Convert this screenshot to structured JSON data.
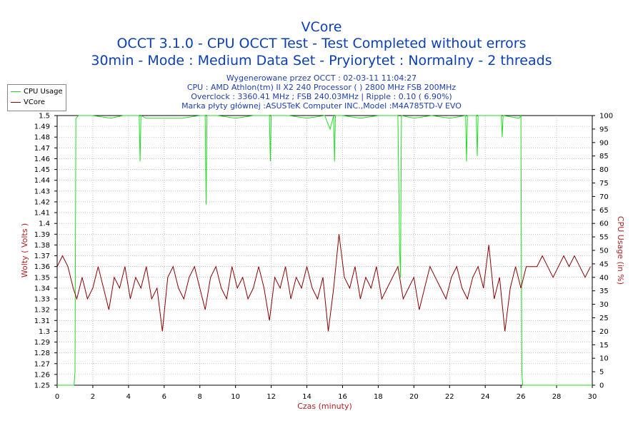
{
  "header": {
    "title": "VCore",
    "line1": "OCCT 3.1.0 - CPU OCCT Test - Test Completed without errors",
    "line2": "30min - Mode : Medium Data Set - Pryiorytet : Normalny - 2 threads",
    "info": [
      "Wygenerowane przez OCCT : 02-03-11 11:04:27",
      "CPU : AMD Athlon(tm) II X2 240 Processor (  ) 2800 MHz FSB 200MHz",
      "Overclock : 3360.41 MHz ; FSB 240.03MHz | Ripple : 0.10 ( 6.90%)",
      "Marka płyty głównej :ASUSTeK Computer INC.,Model :M4A785TD-V EVO"
    ]
  },
  "legend": [
    {
      "name": "CPU Usage",
      "color": "#22dd22"
    },
    {
      "name": "VCore",
      "color": "#8b0000"
    }
  ],
  "chart_data": {
    "type": "line",
    "xlabel": "Czas (minuty)",
    "ylabel": "Wolty ( Volts )",
    "y2label": "CPU Usage (in %)",
    "xlim": [
      0,
      30
    ],
    "ylim": [
      1.25,
      1.5
    ],
    "y2lim": [
      0,
      100
    ],
    "x_ticks": [
      "0",
      "2",
      "4",
      "6",
      "8",
      "10",
      "12",
      "14",
      "16",
      "18",
      "20",
      "22",
      "24",
      "26",
      "28",
      "30"
    ],
    "y_ticks": [
      "1.5",
      "1.49",
      "1.48",
      "1.47",
      "1.46",
      "1.45",
      "1.44",
      "1.43",
      "1.42",
      "1.41",
      "1.4",
      "1.39",
      "1.38",
      "1.37",
      "1.36",
      "1.35",
      "1.34",
      "1.33",
      "1.32",
      "1.31",
      "1.3",
      "1.29",
      "1.28",
      "1.27",
      "1.26",
      "1.25"
    ],
    "y2_ticks": [
      "100",
      "95",
      "90",
      "85",
      "80",
      "75",
      "70",
      "65",
      "60",
      "55",
      "50",
      "45",
      "40",
      "35",
      "30",
      "25",
      "20",
      "15",
      "10",
      "5",
      "0"
    ],
    "grid": true,
    "legend_position": "top-left",
    "series": [
      {
        "name": "CPU Usage",
        "axis": "right",
        "color": "#22dd22",
        "x": [
          0,
          0.95,
          1.0,
          1.05,
          1.2,
          2.0,
          3.0,
          3.7,
          4.0,
          4.6,
          4.65,
          4.7,
          5.0,
          6.0,
          7.0,
          8.0,
          8.3,
          8.35,
          8.4,
          8.5,
          9.0,
          10.0,
          11.0,
          11.9,
          11.95,
          12.0,
          13.0,
          14.0,
          15.0,
          15.3,
          15.5,
          15.55,
          15.6,
          16.0,
          17.0,
          18.0,
          19.1,
          19.2,
          19.25,
          19.3,
          20.0,
          21.0,
          22.0,
          22.9,
          22.95,
          23.0,
          23.5,
          23.55,
          23.6,
          24.0,
          24.9,
          24.95,
          25.0,
          25.9,
          26.0,
          26.05,
          26.1,
          30.0
        ],
        "y": [
          0,
          0,
          5,
          99,
          100,
          100,
          99,
          100,
          100,
          100,
          83,
          100,
          99,
          99,
          99,
          100,
          100,
          67,
          100,
          100,
          100,
          99,
          100,
          100,
          83,
          100,
          100,
          99,
          100,
          95,
          100,
          83,
          100,
          100,
          99,
          100,
          100,
          50,
          40,
          100,
          99,
          100,
          99,
          100,
          83,
          100,
          100,
          85,
          100,
          100,
          100,
          92,
          100,
          99,
          100,
          5,
          0,
          0
        ]
      },
      {
        "name": "VCore",
        "axis": "left",
        "color": "#8b0000",
        "x": [
          0,
          0.3,
          0.6,
          0.9,
          1.1,
          1.4,
          1.7,
          2.0,
          2.3,
          2.6,
          2.9,
          3.2,
          3.5,
          3.8,
          4.1,
          4.4,
          4.7,
          5.0,
          5.3,
          5.6,
          5.9,
          6.2,
          6.5,
          6.8,
          7.1,
          7.4,
          7.7,
          8.0,
          8.3,
          8.6,
          8.9,
          9.2,
          9.5,
          9.8,
          10.1,
          10.4,
          10.7,
          11.0,
          11.3,
          11.6,
          11.9,
          12.2,
          12.5,
          12.8,
          13.1,
          13.4,
          13.7,
          14.0,
          14.3,
          14.6,
          14.9,
          15.2,
          15.5,
          15.8,
          16.1,
          16.4,
          16.7,
          17.0,
          17.3,
          17.6,
          17.9,
          18.2,
          18.5,
          18.8,
          19.1,
          19.4,
          19.7,
          20.0,
          20.3,
          20.6,
          20.9,
          21.2,
          21.5,
          21.8,
          22.1,
          22.4,
          22.7,
          23.0,
          23.3,
          23.6,
          23.9,
          24.2,
          24.5,
          24.8,
          25.1,
          25.4,
          25.7,
          26.0,
          26.3,
          26.6,
          26.9,
          27.2,
          27.5,
          27.8,
          28.1,
          28.4,
          28.7,
          29.0,
          29.3,
          29.6,
          29.9
        ],
        "y": [
          1.36,
          1.37,
          1.36,
          1.34,
          1.33,
          1.35,
          1.33,
          1.34,
          1.36,
          1.34,
          1.32,
          1.35,
          1.34,
          1.36,
          1.33,
          1.35,
          1.34,
          1.36,
          1.33,
          1.34,
          1.3,
          1.35,
          1.36,
          1.34,
          1.33,
          1.35,
          1.36,
          1.34,
          1.32,
          1.35,
          1.36,
          1.34,
          1.33,
          1.36,
          1.34,
          1.35,
          1.33,
          1.34,
          1.36,
          1.34,
          1.31,
          1.35,
          1.34,
          1.36,
          1.33,
          1.35,
          1.34,
          1.36,
          1.34,
          1.33,
          1.35,
          1.3,
          1.34,
          1.39,
          1.35,
          1.34,
          1.36,
          1.33,
          1.35,
          1.34,
          1.36,
          1.33,
          1.34,
          1.35,
          1.36,
          1.33,
          1.34,
          1.35,
          1.32,
          1.34,
          1.36,
          1.35,
          1.34,
          1.33,
          1.35,
          1.36,
          1.34,
          1.33,
          1.35,
          1.36,
          1.34,
          1.38,
          1.33,
          1.35,
          1.3,
          1.34,
          1.36,
          1.34,
          1.36,
          1.36,
          1.36,
          1.37,
          1.36,
          1.35,
          1.36,
          1.37,
          1.36,
          1.37,
          1.36,
          1.35,
          1.36
        ]
      }
    ]
  }
}
